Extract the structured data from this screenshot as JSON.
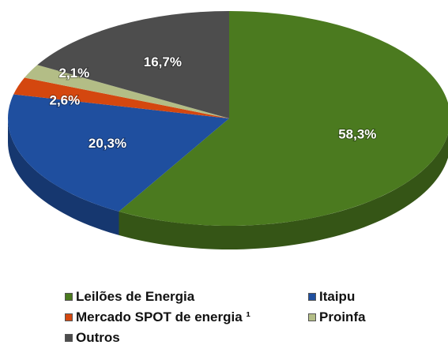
{
  "chart_data": {
    "type": "pie",
    "categories": [
      "Leilões de Energia",
      "Itaipu",
      "Mercado SPOT de energia ¹",
      "Proinfa",
      "Outros"
    ],
    "values": [
      58.3,
      20.3,
      2.6,
      2.1,
      16.7
    ],
    "value_labels": [
      "58,3%",
      "20,3%",
      "2,6%",
      "2,1%",
      "16,7%"
    ],
    "colors": [
      "#4b7a1f",
      "#1f4f9f",
      "#d4470f",
      "#b3bd86",
      "#4d4d4d"
    ]
  }
}
